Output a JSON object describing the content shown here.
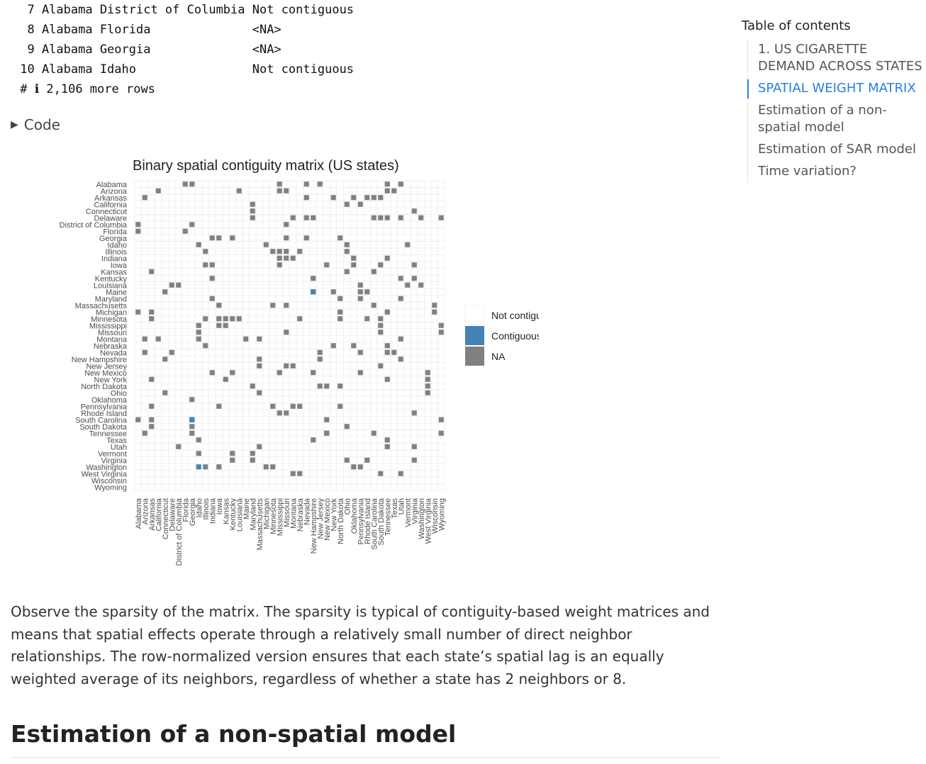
{
  "output_rows": [
    "  7 Alabama District of Columbia Not contiguous",
    "  8 Alabama Florida              <NA>",
    "  9 Alabama Georgia              <NA>",
    " 10 Alabama Idaho                Not contiguous",
    " # ℹ 2,106 more rows"
  ],
  "code_toggle": {
    "icon": "triangle-right-icon",
    "label": "Code"
  },
  "chart_data": {
    "type": "heatmap",
    "title": "Binary spatial contiguity matrix (US states)",
    "states": [
      "Alabama",
      "Arizona",
      "Arkansas",
      "California",
      "Connecticut",
      "Delaware",
      "District of Columbia",
      "Florida",
      "Georgia",
      "Idaho",
      "Illinois",
      "Indiana",
      "Iowa",
      "Kansas",
      "Kentucky",
      "Louisiana",
      "Maine",
      "Maryland",
      "Massachusetts",
      "Michigan",
      "Minnesota",
      "Mississippi",
      "Missouri",
      "Montana",
      "Nebraska",
      "Nevada",
      "New Hampshire",
      "New Jersey",
      "New Mexico",
      "New York",
      "North Dakota",
      "Ohio",
      "Oklahoma",
      "Pennsylvania",
      "Rhode Island",
      "South Carolina",
      "South Dakota",
      "Tennessee",
      "Texas",
      "Utah",
      "Vermont",
      "Virginia",
      "Washington",
      "West Virginia",
      "Wisconsin",
      "Wyoming"
    ],
    "legend": [
      {
        "label": "Not contiguous",
        "color": "#ffffff"
      },
      {
        "label": "Contiguous",
        "color": "#4682b4"
      },
      {
        "label": "NA",
        "color": "#808080"
      }
    ],
    "na_cells": [
      [
        0,
        7
      ],
      [
        0,
        8
      ],
      [
        0,
        21
      ],
      [
        0,
        25
      ],
      [
        0,
        27
      ],
      [
        0,
        37
      ],
      [
        0,
        39
      ],
      [
        1,
        3
      ],
      [
        1,
        15
      ],
      [
        1,
        21
      ],
      [
        1,
        22
      ],
      [
        1,
        37
      ],
      [
        1,
        38
      ],
      [
        2,
        1
      ],
      [
        2,
        25
      ],
      [
        2,
        29
      ],
      [
        2,
        32
      ],
      [
        2,
        34
      ],
      [
        2,
        36
      ],
      [
        2,
        35
      ],
      [
        3,
        17
      ],
      [
        3,
        31
      ],
      [
        3,
        33
      ],
      [
        4,
        17
      ],
      [
        4,
        41
      ],
      [
        5,
        17
      ],
      [
        5,
        23
      ],
      [
        5,
        25
      ],
      [
        5,
        26
      ],
      [
        5,
        35
      ],
      [
        5,
        36
      ],
      [
        5,
        37
      ],
      [
        5,
        39
      ],
      [
        5,
        42
      ],
      [
        5,
        45
      ],
      [
        6,
        0
      ],
      [
        6,
        8
      ],
      [
        6,
        22
      ],
      [
        7,
        0
      ],
      [
        7,
        7
      ],
      [
        8,
        11
      ],
      [
        8,
        12
      ],
      [
        8,
        14
      ],
      [
        8,
        22
      ],
      [
        8,
        25
      ],
      [
        8,
        30
      ],
      [
        9,
        9
      ],
      [
        9,
        19
      ],
      [
        9,
        31
      ],
      [
        9,
        40
      ],
      [
        10,
        10
      ],
      [
        10,
        20
      ],
      [
        10,
        21
      ],
      [
        10,
        22
      ],
      [
        10,
        24
      ],
      [
        10,
        31
      ],
      [
        11,
        21
      ],
      [
        11,
        22
      ],
      [
        11,
        23
      ],
      [
        11,
        32
      ],
      [
        11,
        37
      ],
      [
        12,
        10
      ],
      [
        12,
        11
      ],
      [
        12,
        21
      ],
      [
        12,
        28
      ],
      [
        12,
        32
      ],
      [
        12,
        36
      ],
      [
        12,
        41
      ],
      [
        13,
        2
      ],
      [
        13,
        31
      ],
      [
        13,
        35
      ],
      [
        14,
        11
      ],
      [
        14,
        26
      ],
      [
        14,
        39
      ],
      [
        14,
        41
      ],
      [
        15,
        5
      ],
      [
        15,
        6
      ],
      [
        15,
        33
      ],
      [
        15,
        40
      ],
      [
        15,
        42
      ],
      [
        16,
        4
      ],
      [
        16,
        26
      ],
      [
        16,
        29
      ],
      [
        16,
        33
      ],
      [
        16,
        34
      ],
      [
        17,
        11
      ],
      [
        17,
        30
      ],
      [
        17,
        33
      ],
      [
        17,
        39
      ],
      [
        18,
        12
      ],
      [
        18,
        20
      ],
      [
        18,
        22
      ],
      [
        18,
        35
      ],
      [
        18,
        44
      ],
      [
        19,
        0
      ],
      [
        19,
        2
      ],
      [
        19,
        30
      ],
      [
        19,
        37
      ],
      [
        19,
        44
      ],
      [
        20,
        2
      ],
      [
        20,
        10
      ],
      [
        20,
        12
      ],
      [
        20,
        13
      ],
      [
        20,
        14
      ],
      [
        20,
        15
      ],
      [
        20,
        24
      ],
      [
        20,
        30
      ],
      [
        20,
        34
      ],
      [
        20,
        36
      ],
      [
        21,
        9
      ],
      [
        21,
        12
      ],
      [
        21,
        13
      ],
      [
        21,
        36
      ],
      [
        21,
        45
      ],
      [
        22,
        9
      ],
      [
        22,
        22
      ],
      [
        22,
        36
      ],
      [
        22,
        45
      ],
      [
        23,
        1
      ],
      [
        23,
        3
      ],
      [
        23,
        9
      ],
      [
        23,
        16
      ],
      [
        23,
        18
      ],
      [
        23,
        39
      ],
      [
        24,
        10
      ],
      [
        24,
        29
      ],
      [
        24,
        32
      ],
      [
        24,
        37
      ],
      [
        25,
        1
      ],
      [
        25,
        5
      ],
      [
        25,
        27
      ],
      [
        25,
        33
      ],
      [
        25,
        37
      ],
      [
        25,
        38
      ],
      [
        26,
        4
      ],
      [
        26,
        18
      ],
      [
        26,
        27
      ],
      [
        26,
        39
      ],
      [
        27,
        18
      ],
      [
        27,
        23
      ],
      [
        27,
        22
      ],
      [
        27,
        36
      ],
      [
        28,
        11
      ],
      [
        28,
        14
      ],
      [
        28,
        21
      ],
      [
        28,
        26
      ],
      [
        28,
        33
      ],
      [
        28,
        43
      ],
      [
        29,
        2
      ],
      [
        29,
        13
      ],
      [
        29,
        37
      ],
      [
        29,
        43
      ],
      [
        30,
        17
      ],
      [
        30,
        27
      ],
      [
        30,
        28
      ],
      [
        30,
        30
      ],
      [
        30,
        43
      ],
      [
        31,
        4
      ],
      [
        31,
        18
      ],
      [
        31,
        43
      ],
      [
        32,
        8
      ],
      [
        33,
        2
      ],
      [
        33,
        12
      ],
      [
        33,
        20
      ],
      [
        33,
        23
      ],
      [
        33,
        24
      ],
      [
        33,
        30
      ],
      [
        34,
        22
      ],
      [
        34,
        21
      ],
      [
        34,
        41
      ],
      [
        35,
        0
      ],
      [
        35,
        2
      ],
      [
        35,
        8
      ],
      [
        35,
        28
      ],
      [
        35,
        45
      ],
      [
        36,
        2
      ],
      [
        36,
        8
      ],
      [
        36,
        31
      ],
      [
        37,
        1
      ],
      [
        37,
        8
      ],
      [
        37,
        28
      ],
      [
        37,
        35
      ],
      [
        37,
        28
      ],
      [
        37,
        45
      ],
      [
        38,
        9
      ],
      [
        38,
        26
      ],
      [
        38,
        37
      ],
      [
        39,
        6
      ],
      [
        39,
        18
      ],
      [
        39,
        37
      ],
      [
        39,
        41
      ],
      [
        40,
        9
      ],
      [
        40,
        14
      ],
      [
        40,
        17
      ],
      [
        41,
        14
      ],
      [
        41,
        17
      ],
      [
        41,
        31
      ],
      [
        41,
        34
      ],
      [
        41,
        41
      ],
      [
        42,
        10
      ],
      [
        42,
        12
      ],
      [
        42,
        19
      ],
      [
        42,
        20
      ],
      [
        42,
        32
      ],
      [
        42,
        33
      ],
      [
        43,
        23
      ],
      [
        43,
        24
      ],
      [
        43,
        36
      ],
      [
        43,
        39
      ]
    ],
    "contiguous_cells": [
      [
        16,
        26
      ],
      [
        35,
        8
      ],
      [
        42,
        9
      ]
    ]
  },
  "body_text": "Observe the sparsity of the matrix. The sparsity is typical of contiguity-based weight matrices and means that spatial effects operate through a relatively small number of direct neighbor relationships. The row-normalized version ensures that each state’s spatial lag is an equally weighted average of its neighbors, regardless of whether a state has 2 neighbors or 8.",
  "section_title": "Estimation of a non-spatial model",
  "toc": {
    "title": "Table of contents",
    "items": [
      {
        "label": "1. US CIGARETTE DEMAND ACROSS STATES",
        "active": false
      },
      {
        "label": "SPATIAL WEIGHT MATRIX",
        "active": true
      },
      {
        "label": "Estimation of a non-spatial model",
        "active": false
      },
      {
        "label": "Estimation of SAR model",
        "active": false
      },
      {
        "label": "Time variation?",
        "active": false
      }
    ]
  }
}
